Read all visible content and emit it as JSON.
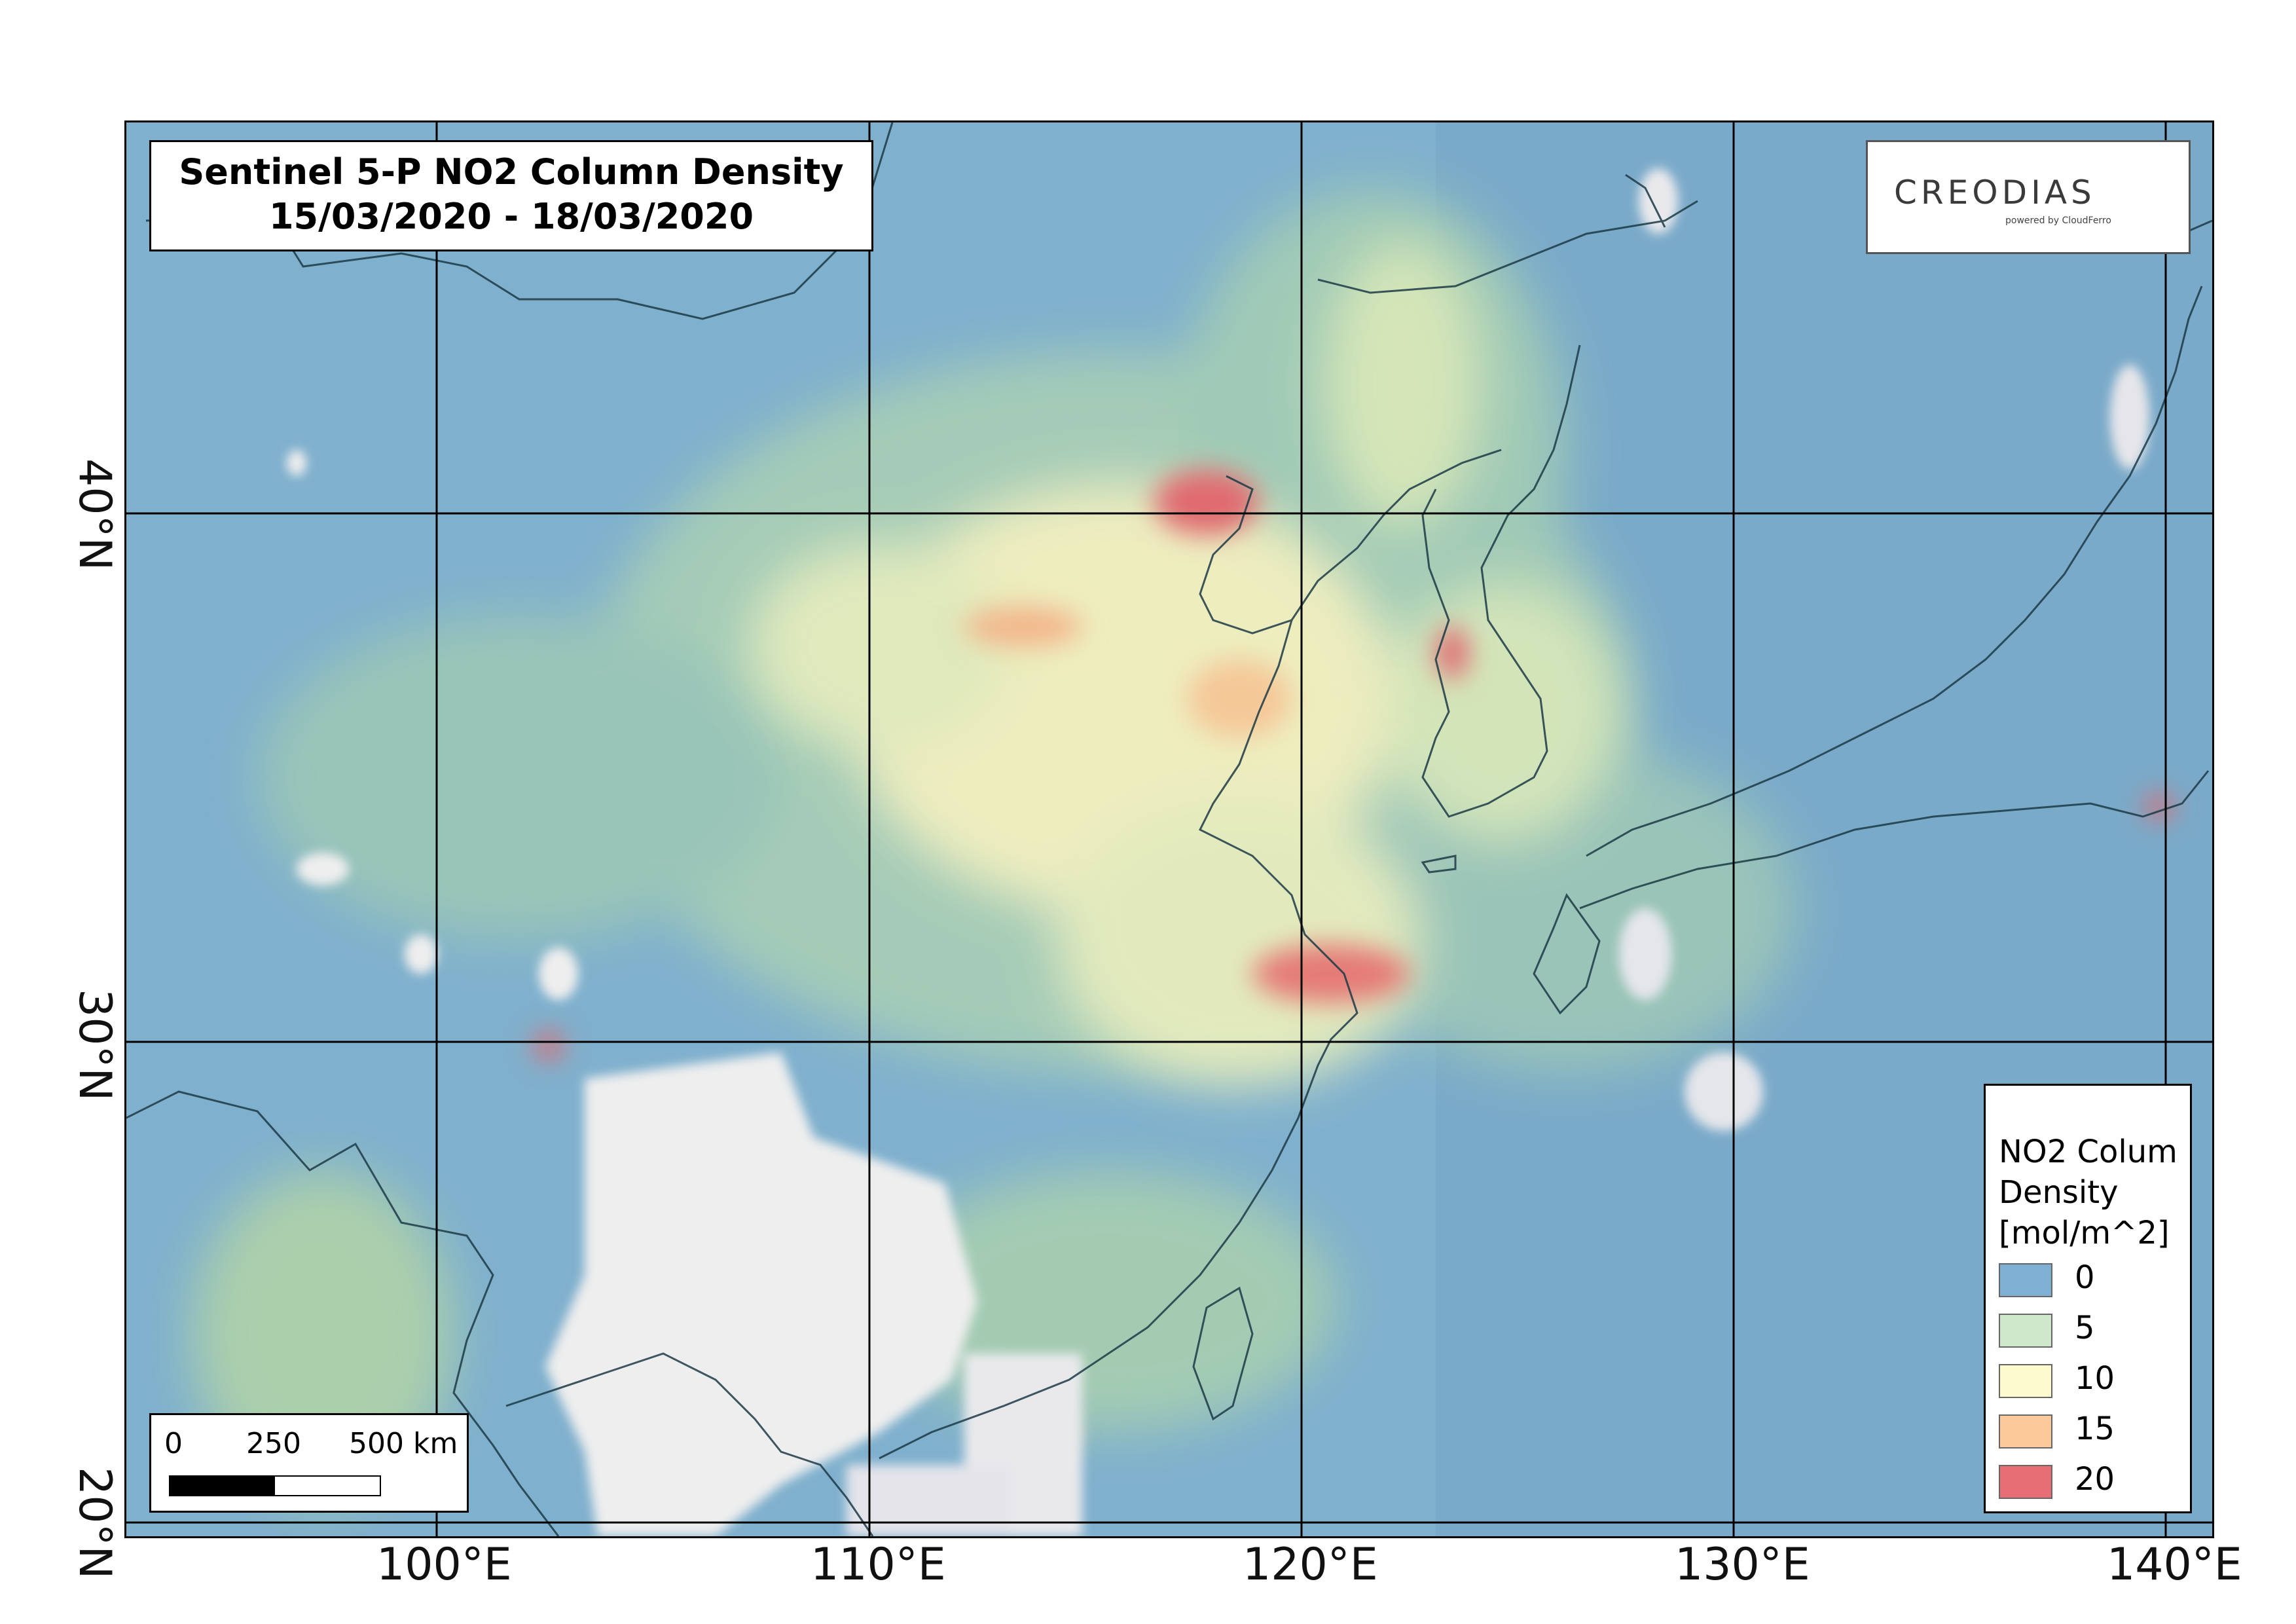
{
  "title": {
    "line1": "Sentinel 5-P NO2 Column Density",
    "line2": "15/03/2020 - 18/03/2020"
  },
  "logo": {
    "wordmark": "CREODIAS",
    "tagline": "powered by CloudFerro"
  },
  "axes": {
    "longitude_labels": [
      "100°E",
      "110°E",
      "120°E",
      "130°E",
      "140°E"
    ],
    "latitude_labels": [
      "40°N",
      "30°N",
      "20°N"
    ]
  },
  "legend": {
    "title_lines": [
      "NO2 Colum",
      "Density",
      "[mol/m^2]"
    ],
    "items": [
      {
        "label": "0",
        "color": "#7fb0d4"
      },
      {
        "label": "5",
        "color": "#cfe8cc"
      },
      {
        "label": "10",
        "color": "#fefad0"
      },
      {
        "label": "15",
        "color": "#fcca9a"
      },
      {
        "label": "20",
        "color": "#e76e74"
      }
    ]
  },
  "scale_bar": {
    "labels": [
      "0",
      "250",
      "500 km"
    ]
  },
  "colors": {
    "ocean_base": "#7fb0cd",
    "land_base": "#86b7c6",
    "low_no2": "#b9d8ab",
    "mid_no2": "#f5f1bd",
    "high_no2": "#f3b58a",
    "peak_no2": "#e06a6f",
    "cloud_mask": "#eeeeee",
    "coastline": "#1c3a46"
  }
}
